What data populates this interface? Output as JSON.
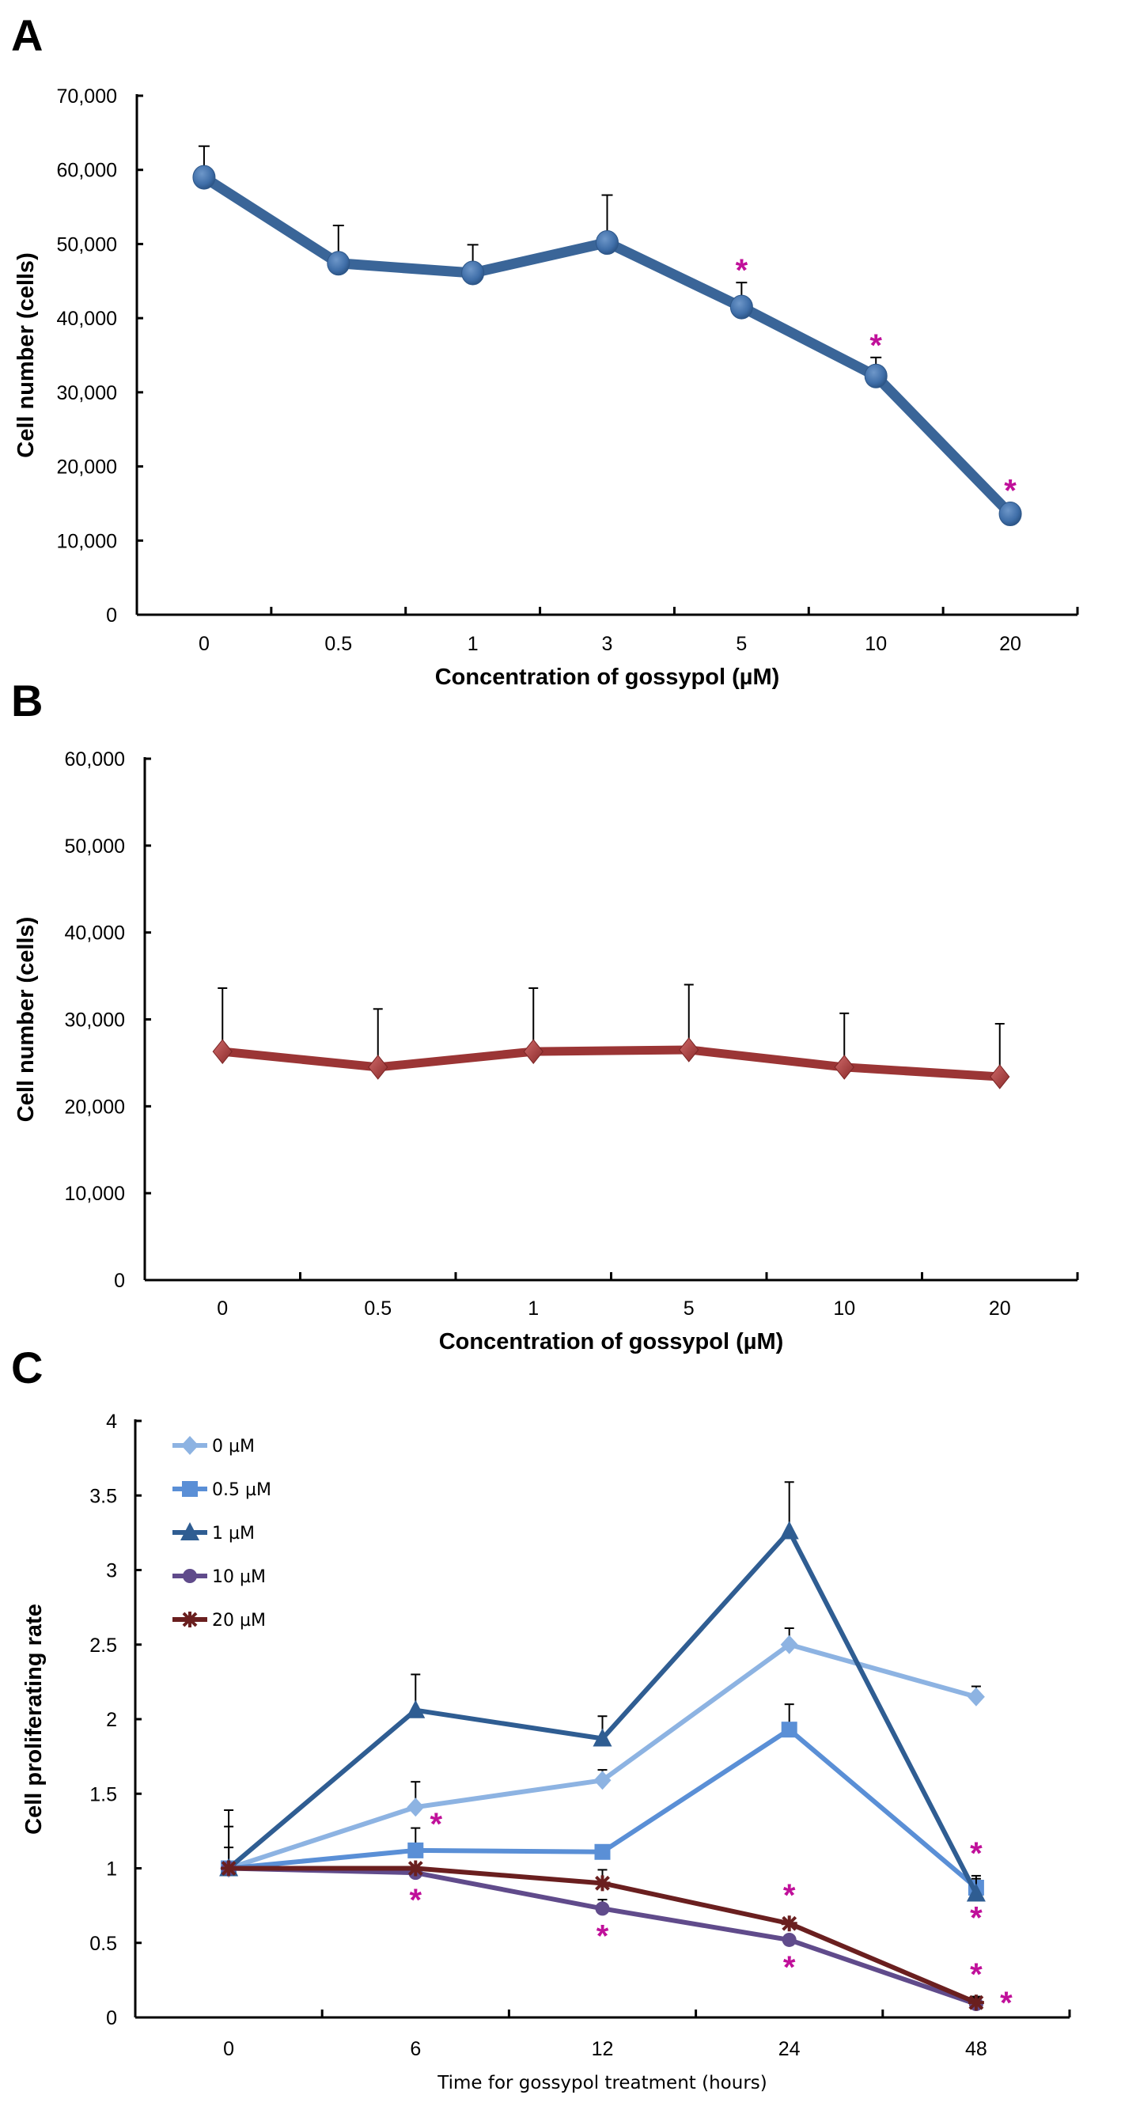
{
  "chart_data": [
    {
      "panel": "A",
      "type": "line",
      "title": "",
      "xlabel": "Concentration of gossypol (µM)",
      "ylabel": "Cell number  (cells)",
      "categories": [
        "0",
        "0.5",
        "1",
        "3",
        "5",
        "10",
        "20"
      ],
      "ylim": [
        0,
        70000
      ],
      "yticks": [
        "0",
        "10,000",
        "20,000",
        "30,000",
        "40,000",
        "50,000",
        "60,000",
        "70,000"
      ],
      "ytick_values": [
        0,
        10000,
        20000,
        30000,
        40000,
        50000,
        60000,
        70000
      ],
      "grid": false,
      "series": [
        {
          "name": "Cell number",
          "color": "#3a6598",
          "marker": "circle",
          "values": [
            59000,
            47400,
            46100,
            50200,
            41500,
            32200,
            13600
          ],
          "error_upper": [
            63200,
            52500,
            49900,
            56600,
            44800,
            34700,
            null
          ],
          "significant": [
            false,
            false,
            false,
            false,
            true,
            true,
            true
          ]
        }
      ],
      "significance_marker": "*"
    },
    {
      "panel": "B",
      "type": "line",
      "title": "",
      "xlabel": "Concentration of gossypol (µM)",
      "ylabel": "Cell number  (cells)",
      "categories": [
        "0",
        "0.5",
        "1",
        "5",
        "10",
        "20"
      ],
      "ylim": [
        0,
        60000
      ],
      "yticks": [
        "0",
        "10,000",
        "20,000",
        "30,000",
        "40,000",
        "50,000",
        "60,000"
      ],
      "ytick_values": [
        0,
        10000,
        20000,
        30000,
        40000,
        50000,
        60000
      ],
      "grid": false,
      "series": [
        {
          "name": "Cell number",
          "color": "#9b3535",
          "marker": "diamond",
          "values": [
            26300,
            24500,
            26300,
            26500,
            24500,
            23400
          ],
          "error_upper": [
            33600,
            31200,
            33600,
            34000,
            30700,
            29500
          ]
        }
      ]
    },
    {
      "panel": "C",
      "type": "line",
      "title": "",
      "xlabel": "Time for gossypol treatment (hours)",
      "ylabel": "Cell proliferating rate",
      "categories": [
        "0",
        "6",
        "12",
        "24",
        "48"
      ],
      "ylim": [
        0,
        4
      ],
      "yticks": [
        "0",
        "0.5",
        "1",
        "1.5",
        "2",
        "2.5",
        "3",
        "3.5",
        "4"
      ],
      "ytick_values": [
        0,
        0.5,
        1,
        1.5,
        2,
        2.5,
        3,
        3.5,
        4
      ],
      "grid": false,
      "legend": "top-left",
      "series": [
        {
          "name": "0 µM",
          "color": "#8db3e2",
          "marker": "diamond",
          "values": [
            1.0,
            1.41,
            1.59,
            2.5,
            2.15
          ],
          "error_upper": [
            1.28,
            1.58,
            1.66,
            2.61,
            2.22
          ],
          "significant": [
            false,
            false,
            false,
            false,
            false
          ]
        },
        {
          "name": "0.5 µM",
          "color": "#5a8fd6",
          "marker": "square",
          "values": [
            1.0,
            1.12,
            1.11,
            1.93,
            0.87
          ],
          "error_upper": [
            1.14,
            1.27,
            1.15,
            2.1,
            0.95
          ],
          "significant": [
            false,
            true,
            false,
            false,
            true
          ]
        },
        {
          "name": "1 µM",
          "color": "#2f5d92",
          "marker": "triangle",
          "values": [
            1.0,
            2.06,
            1.87,
            3.26,
            0.83
          ],
          "error_upper": [
            1.39,
            2.3,
            2.02,
            3.59,
            0.93
          ],
          "significant": [
            false,
            false,
            false,
            false,
            true
          ]
        },
        {
          "name": "10 µM",
          "color": "#604b8b",
          "marker": "circle",
          "values": [
            1.0,
            0.97,
            0.73,
            0.52,
            0.09
          ],
          "error_upper": [
            null,
            null,
            0.79,
            null,
            0.14
          ],
          "significant": [
            false,
            true,
            true,
            true,
            true
          ]
        },
        {
          "name": "20 µM",
          "color": "#6a1f1f",
          "marker": "star",
          "values": [
            1.0,
            1.0,
            0.9,
            0.63,
            0.1
          ],
          "error_upper": [
            null,
            null,
            0.99,
            null,
            0.13
          ],
          "significant": [
            false,
            false,
            false,
            true,
            true
          ]
        }
      ],
      "significance_marker": "*"
    }
  ],
  "panels": {
    "a_label": "A",
    "b_label": "B",
    "c_label": "C"
  }
}
